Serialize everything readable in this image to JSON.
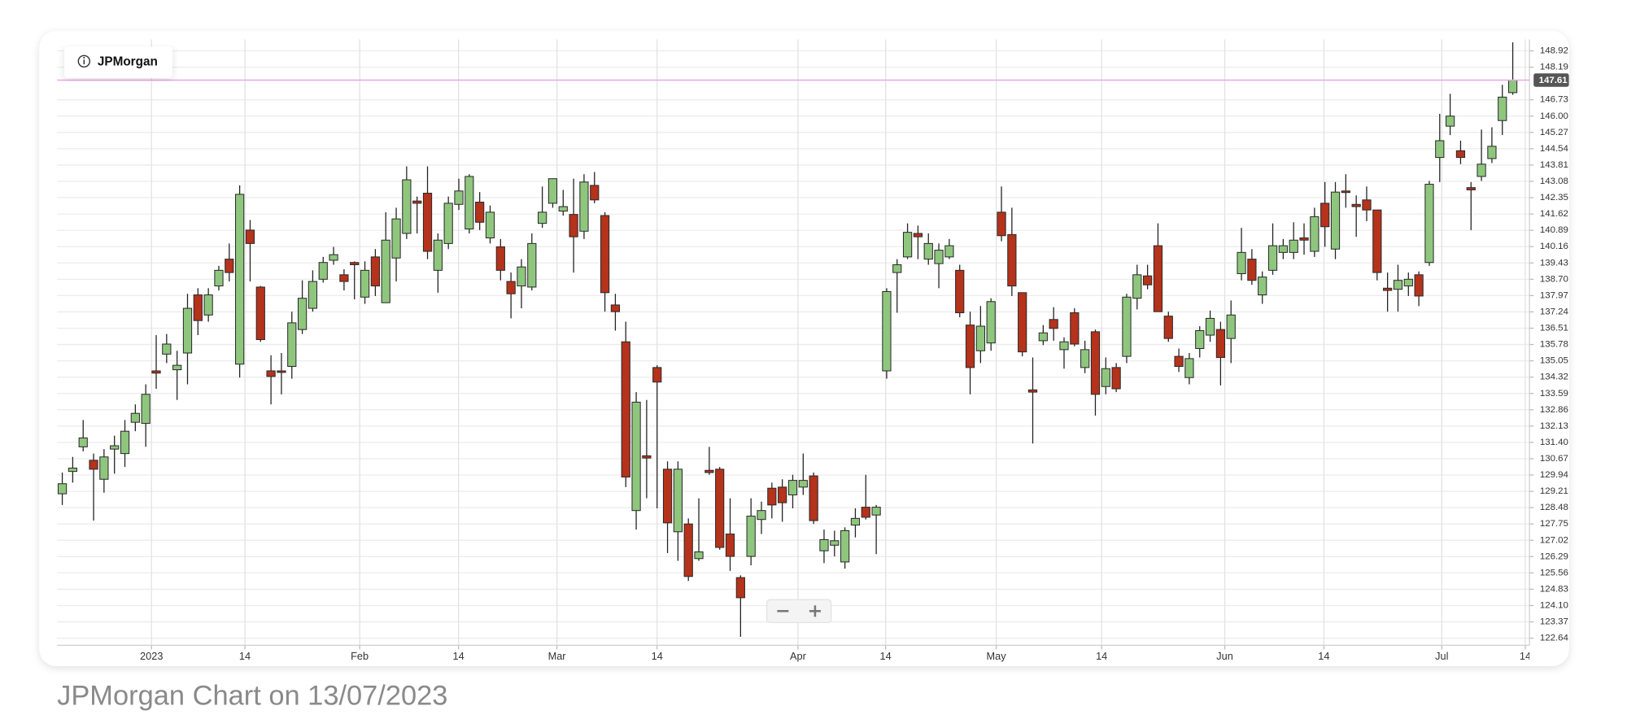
{
  "chart_data": {
    "type": "candlestick",
    "legend": "JPMorgan",
    "caption": "JPMorgan Chart on 13/07/2023",
    "up_color": "#8fc67e",
    "down_color": "#b5321b",
    "price_line_color": "#e8a6e8",
    "grid": true,
    "xlim": [
      -0.5,
      140.6
    ],
    "xticks": [
      {
        "value": 8.55,
        "label": "2023"
      },
      {
        "value": 17.5,
        "label": "14"
      },
      {
        "value": 28.5,
        "label": "Feb"
      },
      {
        "value": 37.97,
        "label": "14"
      },
      {
        "value": 47.4,
        "label": "Mar"
      },
      {
        "value": 57.0,
        "label": "14"
      },
      {
        "value": 70.5,
        "label": "Apr"
      },
      {
        "value": 78.9,
        "label": "14"
      },
      {
        "value": 89.5,
        "label": "May"
      },
      {
        "value": 99.6,
        "label": "14"
      },
      {
        "value": 111.4,
        "label": "Jun"
      },
      {
        "value": 120.9,
        "label": "14"
      },
      {
        "value": 132.2,
        "label": "Jul"
      },
      {
        "value": 140.2,
        "label": "14"
      }
    ],
    "ylim": [
      122.32,
      149.43
    ],
    "yticks": [
      122.64,
      123.37,
      {
        "value": 124.1,
        "label": "124.10"
      },
      124.83,
      125.56,
      126.29,
      127.02,
      127.75,
      128.48,
      129.21,
      129.94,
      130.67,
      {
        "value": 131.4,
        "label": "131.40"
      },
      132.13,
      132.86,
      133.59,
      134.32,
      135.05,
      135.78,
      136.51,
      137.24,
      137.97,
      {
        "value": 138.7,
        "label": "138.70"
      },
      139.43,
      140.16,
      140.89,
      141.62,
      142.35,
      143.08,
      143.81,
      144.54,
      145.27,
      {
        "value": 146,
        "label": "146.00"
      },
      146.73,
      148.19,
      148.92
    ],
    "last_price": {
      "value": 147.61,
      "label": "147.61"
    },
    "series": [
      {
        "name": "JPMorgan",
        "open": [
          129.1,
          130.1,
          131.2,
          130.6,
          129.75,
          131.1,
          130.9,
          132.3,
          132.25,
          134.6,
          135.35,
          134.65,
          135.4,
          138.0,
          137.1,
          138.4,
          139.6,
          134.9,
          140.9,
          138.35,
          134.6,
          134.6,
          134.8,
          136.45,
          137.4,
          138.7,
          139.55,
          138.9,
          139.45,
          137.9,
          139.7,
          137.65,
          139.65,
          140.75,
          142.2,
          142.55,
          139.1,
          140.3,
          142.05,
          140.95,
          142.15,
          140.55,
          140.15,
          138.6,
          138.4,
          138.35,
          141.2,
          142.1,
          141.75,
          141.6,
          140.85,
          142.9,
          141.55,
          137.55,
          135.9,
          128.35,
          130.8,
          134.75,
          130.2,
          127.4,
          127.75,
          126.2,
          130.15,
          130.2,
          127.3,
          125.35,
          126.3,
          127.95,
          129.35,
          129.4,
          129.05,
          129.4,
          129.9,
          126.55,
          126.8,
          126.05,
          127.7,
          128.5,
          128.15,
          134.6,
          139.0,
          139.7,
          140.75,
          139.6,
          139.4,
          139.7,
          139.1,
          136.65,
          135.5,
          135.85,
          141.7,
          140.7,
          138.1,
          133.75,
          135.95,
          136.9,
          135.55,
          137.2,
          134.75,
          136.35,
          133.9,
          134.75,
          135.25,
          137.85,
          138.85,
          140.2,
          137.05,
          135.25,
          134.3,
          135.6,
          136.2,
          136.45,
          136.05,
          138.95,
          139.6,
          138.0,
          139.1,
          139.9,
          139.9,
          140.55,
          139.95,
          142.1,
          140.05,
          142.65,
          142.05,
          142.25,
          141.8,
          138.3,
          138.25,
          138.4,
          138.9,
          139.45,
          144.15,
          145.55,
          144.45,
          142.8,
          143.3,
          144.1,
          145.8,
          147.05
        ],
        "high": [
          130.05,
          130.75,
          132.4,
          130.9,
          131.1,
          131.7,
          132.4,
          133.1,
          134.0,
          136.2,
          136.25,
          135.5,
          138.05,
          138.3,
          138.3,
          139.3,
          140.3,
          142.9,
          141.35,
          138.4,
          135.3,
          135.4,
          137.25,
          138.65,
          139.1,
          139.7,
          140.15,
          139.15,
          139.5,
          139.5,
          140.05,
          141.7,
          141.9,
          143.75,
          142.4,
          143.75,
          140.75,
          142.4,
          143.2,
          143.4,
          142.6,
          142.0,
          140.5,
          139.0,
          139.6,
          140.75,
          142.85,
          143.2,
          142.7,
          143.2,
          143.4,
          143.5,
          141.7,
          138.05,
          136.8,
          133.65,
          133.3,
          134.85,
          130.55,
          130.55,
          128.0,
          128.9,
          131.2,
          130.3,
          128.9,
          125.45,
          128.9,
          128.75,
          129.6,
          129.75,
          129.95,
          130.9,
          130.05,
          127.5,
          127.45,
          127.6,
          128.45,
          129.95,
          128.6,
          138.3,
          139.6,
          141.2,
          141.1,
          140.75,
          140.3,
          140.5,
          139.35,
          137.25,
          137.5,
          137.85,
          142.85,
          141.9,
          138.1,
          135.2,
          136.65,
          137.45,
          136.1,
          137.4,
          135.95,
          136.45,
          135.2,
          134.95,
          138.05,
          139.35,
          139.35,
          141.2,
          137.25,
          135.6,
          135.4,
          136.6,
          137.3,
          136.8,
          137.75,
          141.0,
          140.05,
          139.05,
          141.2,
          140.5,
          141.25,
          141.2,
          141.9,
          143.05,
          143.05,
          143.4,
          142.45,
          142.85,
          141.8,
          139.0,
          139.35,
          139.0,
          139.05,
          143.1,
          146.1,
          147.0,
          144.9,
          143.05,
          145.4,
          145.5,
          147.4,
          149.3
        ],
        "low": [
          128.6,
          129.6,
          131.0,
          127.9,
          129.15,
          130.0,
          130.3,
          131.9,
          131.2,
          133.8,
          134.95,
          133.3,
          134.0,
          136.2,
          136.8,
          138.2,
          138.6,
          134.3,
          138.6,
          135.9,
          133.1,
          133.55,
          134.25,
          136.25,
          137.25,
          138.55,
          139.35,
          138.2,
          137.8,
          137.6,
          137.95,
          137.65,
          138.6,
          140.5,
          140.75,
          139.6,
          138.1,
          140.05,
          141.8,
          140.75,
          140.9,
          140.3,
          138.65,
          136.95,
          137.4,
          138.2,
          141.0,
          141.9,
          141.55,
          139.0,
          140.5,
          142.1,
          137.25,
          136.4,
          129.4,
          127.5,
          128.9,
          128.45,
          126.45,
          126.1,
          125.2,
          126.1,
          129.95,
          126.6,
          125.65,
          122.7,
          125.9,
          127.3,
          128.0,
          127.85,
          128.45,
          129.05,
          127.75,
          126.0,
          126.3,
          125.75,
          127.15,
          127.95,
          126.4,
          134.25,
          137.2,
          139.6,
          139.6,
          139.35,
          138.3,
          139.6,
          137.0,
          133.55,
          134.95,
          135.5,
          140.4,
          137.95,
          135.25,
          131.35,
          135.75,
          135.95,
          134.7,
          135.7,
          134.5,
          132.6,
          133.55,
          133.65,
          134.95,
          137.35,
          138.25,
          137.25,
          135.9,
          134.55,
          134.0,
          135.2,
          135.9,
          133.95,
          134.95,
          138.65,
          138.45,
          137.6,
          138.9,
          139.6,
          139.6,
          139.8,
          139.7,
          140.15,
          139.6,
          141.9,
          140.6,
          141.3,
          138.65,
          137.25,
          137.25,
          137.95,
          137.5,
          139.3,
          143.05,
          145.15,
          143.85,
          140.9,
          143.1,
          143.9,
          145.15,
          146.95
        ],
        "close": [
          129.55,
          130.25,
          131.6,
          130.2,
          130.75,
          131.25,
          131.9,
          132.7,
          133.55,
          134.5,
          135.8,
          134.85,
          137.4,
          136.85,
          138.0,
          139.1,
          139.0,
          142.5,
          140.3,
          136.0,
          134.35,
          134.55,
          136.75,
          137.85,
          138.6,
          139.45,
          139.8,
          138.6,
          139.35,
          139.1,
          138.4,
          140.45,
          141.4,
          143.15,
          142.1,
          139.95,
          140.45,
          142.1,
          142.65,
          143.3,
          141.25,
          141.7,
          139.1,
          138.05,
          139.25,
          140.3,
          141.7,
          143.2,
          141.95,
          140.6,
          143.05,
          142.25,
          138.1,
          137.25,
          129.85,
          133.2,
          130.7,
          134.1,
          127.8,
          130.2,
          125.4,
          126.5,
          130.05,
          126.7,
          126.3,
          124.45,
          128.1,
          128.35,
          128.6,
          128.7,
          129.7,
          129.7,
          127.9,
          127.05,
          127.0,
          127.45,
          128.0,
          128.05,
          128.5,
          138.15,
          139.35,
          140.8,
          140.6,
          140.3,
          140.0,
          140.2,
          137.2,
          134.75,
          136.6,
          137.7,
          140.65,
          138.4,
          135.45,
          133.65,
          136.3,
          136.5,
          135.9,
          135.8,
          135.55,
          133.55,
          134.7,
          133.8,
          137.9,
          138.9,
          138.45,
          137.25,
          136.05,
          134.8,
          135.15,
          136.4,
          136.95,
          135.2,
          137.1,
          139.9,
          138.65,
          138.8,
          140.2,
          140.2,
          140.45,
          140.45,
          141.5,
          141.05,
          142.6,
          142.6,
          141.95,
          141.8,
          139.0,
          138.2,
          138.65,
          138.7,
          137.95,
          142.95,
          144.9,
          146.0,
          144.15,
          142.7,
          143.85,
          144.65,
          146.85,
          147.61
        ]
      }
    ]
  }
}
